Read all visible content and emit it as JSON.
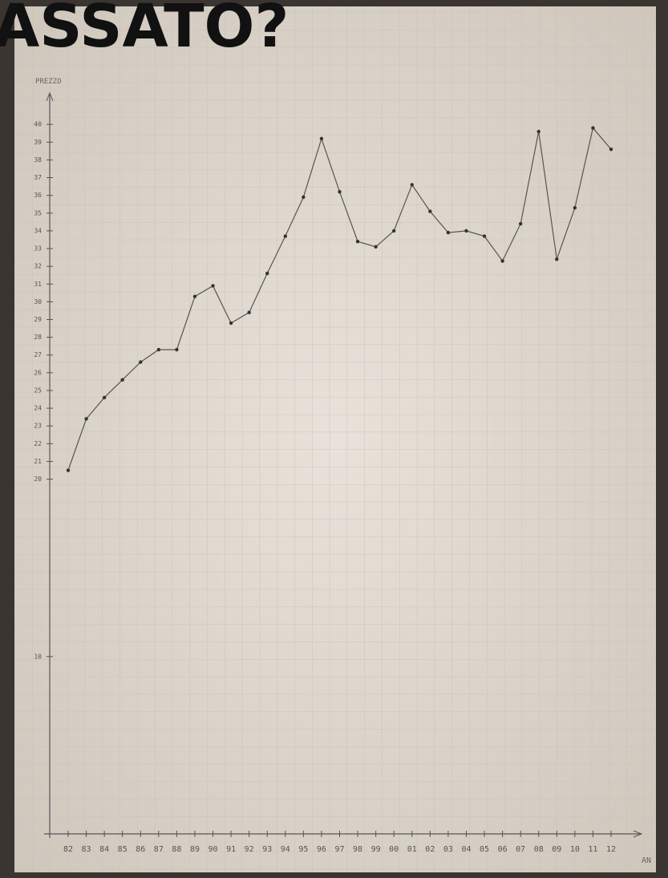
{
  "chart_data": {
    "type": "line",
    "title": "ASSATO?",
    "y_label": "PREZZO",
    "x_label": "AN",
    "categories": [
      "82",
      "83",
      "84",
      "85",
      "86",
      "87",
      "88",
      "89",
      "90",
      "91",
      "92",
      "93",
      "94",
      "95",
      "96",
      "97",
      "98",
      "99",
      "00",
      "01",
      "02",
      "03",
      "04",
      "05",
      "06",
      "07",
      "08",
      "09",
      "10",
      "11",
      "12"
    ],
    "values": [
      20.5,
      23.4,
      24.6,
      25.6,
      26.6,
      27.3,
      27.3,
      30.3,
      30.9,
      28.8,
      29.4,
      31.6,
      33.7,
      35.9,
      39.2,
      36.2,
      33.4,
      33.1,
      34.0,
      36.6,
      35.1,
      33.9,
      34.0,
      33.7,
      32.3,
      34.4,
      39.6,
      32.4,
      35.3,
      39.8,
      38.6
    ],
    "color": "#555555",
    "ylim": [
      0,
      41.5
    ],
    "yticks": [
      10,
      20,
      21,
      22,
      23,
      24,
      25,
      26,
      27,
      28,
      29,
      30,
      31,
      32,
      33,
      34,
      35,
      36,
      37,
      38,
      39,
      40
    ]
  }
}
